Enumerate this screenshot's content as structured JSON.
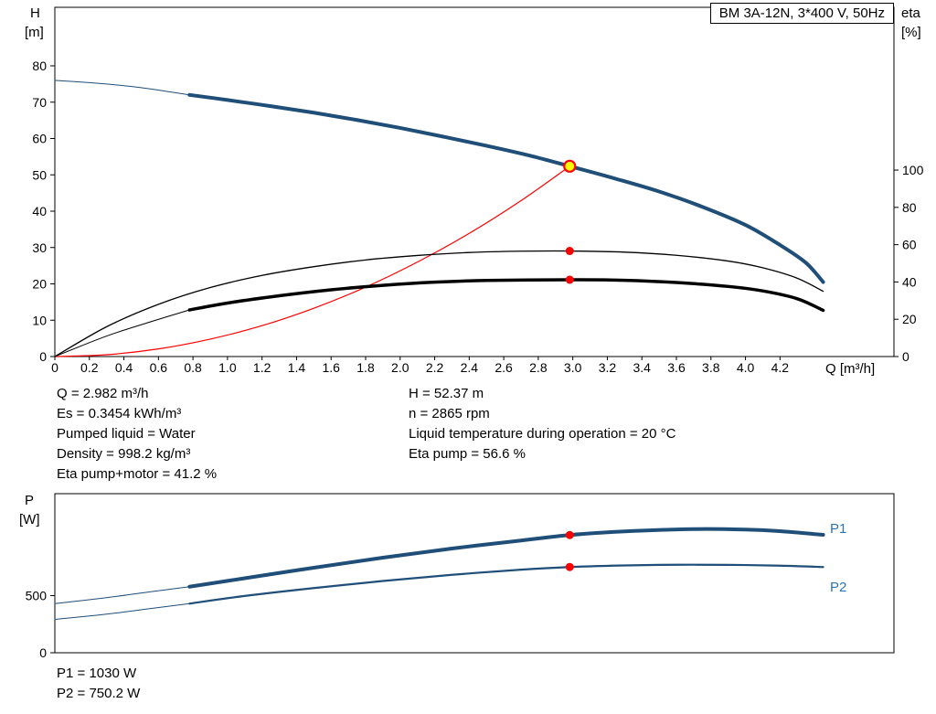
{
  "colors": {
    "blue": "#1f4e79",
    "label_blue": "#2e74b5",
    "red": "#ff0000",
    "yellow": "#ffff00",
    "black": "#000000",
    "frame": "#000000"
  },
  "axis_titles": {
    "h": [
      "H",
      "[m]"
    ],
    "eta": [
      "eta",
      "[%]"
    ],
    "q": "Q [m³/h]",
    "p": [
      "P",
      "[W]"
    ]
  },
  "series_labels": {
    "p1": "P1",
    "p2": "P2"
  },
  "info_left": [
    "Q = 2.982 m³/h",
    "Es = 0.3454 kWh/m³",
    "Pumped liquid = Water",
    "Density = 998.2 kg/m³",
    "Eta pump+motor = 41.2 %"
  ],
  "info_right": [
    "H = 52.37 m",
    "n = 2865 rpm",
    "Liquid temperature during operation = 20 °C",
    "Eta pump = 56.6 %"
  ],
  "power_info": [
    "P1 = 1030 W",
    "P2 = 750.2 W"
  ],
  "chart_data": [
    {
      "type": "line",
      "title": "BM 3A-12N, 3*400 V, 50Hz",
      "xlabel": "Q [m³/h]",
      "ylabel": "H [m]",
      "y2label": "eta [%]",
      "xlim": [
        0,
        4.86
      ],
      "ylim": [
        0,
        96.1
      ],
      "y2lim": [
        0,
        187.3
      ],
      "grid": false,
      "x_ticks": [
        [
          0,
          "0"
        ],
        [
          0.2,
          "0.2"
        ],
        [
          0.4,
          "0.4"
        ],
        [
          0.6,
          "0.6"
        ],
        [
          0.8,
          "0.8"
        ],
        [
          1,
          "1.0"
        ],
        [
          1.2,
          "1.2"
        ],
        [
          1.4,
          "1.4"
        ],
        [
          1.6,
          "1.6"
        ],
        [
          1.8,
          "1.8"
        ],
        [
          2,
          "2.0"
        ],
        [
          2.2,
          "2.2"
        ],
        [
          2.4,
          "2.4"
        ],
        [
          2.6,
          "2.6"
        ],
        [
          2.8,
          "2.8"
        ],
        [
          3,
          "3.0"
        ],
        [
          3.2,
          "3.2"
        ],
        [
          3.4,
          "3.4"
        ],
        [
          3.6,
          "3.6"
        ],
        [
          3.8,
          "3.8"
        ],
        [
          4,
          "4.0"
        ],
        [
          4.2,
          "4.2"
        ]
      ],
      "y_ticks": [
        [
          0,
          "0"
        ],
        [
          10,
          "10"
        ],
        [
          20,
          "20"
        ],
        [
          30,
          "30"
        ],
        [
          40,
          "40"
        ],
        [
          50,
          "50"
        ],
        [
          60,
          "60"
        ],
        [
          70,
          "70"
        ],
        [
          80,
          "80"
        ]
      ],
      "y2_ticks": [
        [
          0,
          "0"
        ],
        [
          20,
          "20"
        ],
        [
          40,
          "40"
        ],
        [
          60,
          "60"
        ],
        [
          80,
          "80"
        ],
        [
          100,
          "100"
        ]
      ],
      "duty_point": {
        "Q": 2.982,
        "H": 52.37,
        "eta_pump": 56.6,
        "eta_pump_motor": 41.2
      },
      "series": [
        {
          "name": "hq-curve-leadin",
          "axis": "y",
          "color": "blue",
          "width": 1,
          "points": [
            [
              0,
              76
            ],
            [
              0.25,
              75.2
            ],
            [
              0.5,
              74
            ],
            [
              0.78,
              72
            ]
          ]
        },
        {
          "name": "hq-curve",
          "axis": "y",
          "color": "blue",
          "width": 4,
          "points": [
            [
              0.78,
              72
            ],
            [
              1,
              70.6
            ],
            [
              1.25,
              68.9
            ],
            [
              1.5,
              67.1
            ],
            [
              1.75,
              65.1
            ],
            [
              2,
              62.9
            ],
            [
              2.25,
              60.5
            ],
            [
              2.5,
              58
            ],
            [
              2.75,
              55.3
            ],
            [
              2.982,
              52.37
            ],
            [
              3.25,
              48.9
            ],
            [
              3.5,
              45.4
            ],
            [
              3.75,
              41.2
            ],
            [
              4,
              36.2
            ],
            [
              4.2,
              30.7
            ],
            [
              4.35,
              25.8
            ],
            [
              4.45,
              20.5
            ]
          ]
        },
        {
          "name": "system-curve",
          "axis": "y",
          "color": "red",
          "width": 1.2,
          "points": [
            [
              0,
              0
            ],
            [
              0.3,
              0.5
            ],
            [
              0.6,
              2.1
            ],
            [
              0.9,
              4.8
            ],
            [
              1.2,
              8.5
            ],
            [
              1.5,
              13.3
            ],
            [
              1.8,
              19.1
            ],
            [
              2.1,
              26
            ],
            [
              2.4,
              33.9
            ],
            [
              2.7,
              42.9
            ],
            [
              2.982,
              52.37
            ]
          ]
        },
        {
          "name": "eta-pump-curve",
          "axis": "y2",
          "color": "black",
          "width": 1.3,
          "points": [
            [
              0,
              0
            ],
            [
              0.3,
              16
            ],
            [
              0.6,
              28
            ],
            [
              0.9,
              37
            ],
            [
              1.2,
              43.5
            ],
            [
              1.5,
              48.2
            ],
            [
              1.8,
              51.8
            ],
            [
              2.1,
              54.2
            ],
            [
              2.4,
              55.8
            ],
            [
              2.7,
              56.5
            ],
            [
              2.982,
              56.6
            ],
            [
              3.3,
              56
            ],
            [
              3.6,
              54.3
            ],
            [
              3.9,
              51.2
            ],
            [
              4.1,
              47.6
            ],
            [
              4.3,
              42
            ],
            [
              4.45,
              35
            ]
          ]
        },
        {
          "name": "eta-pump-motor-leadin",
          "axis": "y2",
          "color": "black",
          "width": 1,
          "points": [
            [
              0,
              0
            ],
            [
              0.3,
              11
            ],
            [
              0.55,
              18.5
            ],
            [
              0.78,
              25
            ]
          ]
        },
        {
          "name": "eta-pump-motor-curve",
          "axis": "y2",
          "color": "black",
          "width": 3.5,
          "points": [
            [
              0.78,
              25
            ],
            [
              1,
              28.7
            ],
            [
              1.3,
              32.6
            ],
            [
              1.6,
              35.8
            ],
            [
              1.9,
              38.2
            ],
            [
              2.2,
              39.9
            ],
            [
              2.5,
              40.8
            ],
            [
              2.982,
              41.2
            ],
            [
              3.3,
              40.9
            ],
            [
              3.6,
              39.7
            ],
            [
              3.9,
              37.6
            ],
            [
              4.1,
              35.2
            ],
            [
              4.3,
              31
            ],
            [
              4.45,
              24.8
            ]
          ]
        }
      ],
      "markers": [
        {
          "name": "duty-point-marker",
          "x": 2.982,
          "value": 52.37,
          "axis": "y",
          "fill": "yellow",
          "stroke": "red",
          "r": 6,
          "interactable": true
        },
        {
          "name": "eta-pump-dot",
          "x": 2.982,
          "value": 56.6,
          "axis": "y2",
          "fill": "red",
          "r": 4.5,
          "interactable": false
        },
        {
          "name": "eta-pump-motor-dot",
          "x": 2.982,
          "value": 41.2,
          "axis": "y2",
          "fill": "red",
          "r": 4.5,
          "interactable": false
        }
      ]
    },
    {
      "type": "line",
      "xlabel": "Q [m³/h]",
      "ylabel": "P [W]",
      "xlim": [
        0,
        4.86
      ],
      "ylim": [
        0,
        1392
      ],
      "grid": false,
      "y_ticks": [
        [
          0,
          "0"
        ],
        [
          500,
          "500"
        ]
      ],
      "series": [
        {
          "name": "p1-curve-leadin",
          "axis": "y",
          "color": "blue",
          "width": 1,
          "points": [
            [
              0,
              430
            ],
            [
              0.3,
              482
            ],
            [
              0.55,
              533
            ],
            [
              0.78,
              578
            ]
          ]
        },
        {
          "name": "p1-curve",
          "axis": "y",
          "color": "blue",
          "width": 4,
          "points": [
            [
              0.78,
              578
            ],
            [
              1.1,
              652
            ],
            [
              1.5,
              744
            ],
            [
              1.9,
              832
            ],
            [
              2.3,
              912
            ],
            [
              2.7,
              982
            ],
            [
              2.982,
              1030
            ],
            [
              3.3,
              1062
            ],
            [
              3.7,
              1082
            ],
            [
              4,
              1078
            ],
            [
              4.2,
              1064
            ],
            [
              4.45,
              1032
            ]
          ]
        },
        {
          "name": "p2-curve-leadin",
          "axis": "y",
          "color": "blue",
          "width": 1,
          "points": [
            [
              0,
              292
            ],
            [
              0.3,
              338
            ],
            [
              0.55,
              386
            ],
            [
              0.78,
              430
            ]
          ]
        },
        {
          "name": "p2-curve",
          "axis": "y",
          "color": "blue",
          "width": 2.2,
          "points": [
            [
              0.78,
              430
            ],
            [
              1.1,
              497
            ],
            [
              1.5,
              566
            ],
            [
              1.9,
              628
            ],
            [
              2.3,
              682
            ],
            [
              2.7,
              727
            ],
            [
              2.982,
              750.2
            ],
            [
              3.3,
              764
            ],
            [
              3.6,
              770
            ],
            [
              3.9,
              769
            ],
            [
              4.2,
              762
            ],
            [
              4.45,
              750
            ]
          ]
        }
      ],
      "markers": [
        {
          "name": "p1-dot",
          "x": 2.982,
          "value": 1030,
          "axis": "y",
          "fill": "red",
          "r": 4.5,
          "interactable": false
        },
        {
          "name": "p2-dot",
          "x": 2.982,
          "value": 750.2,
          "axis": "y",
          "fill": "red",
          "r": 4.5,
          "interactable": false
        }
      ]
    }
  ]
}
